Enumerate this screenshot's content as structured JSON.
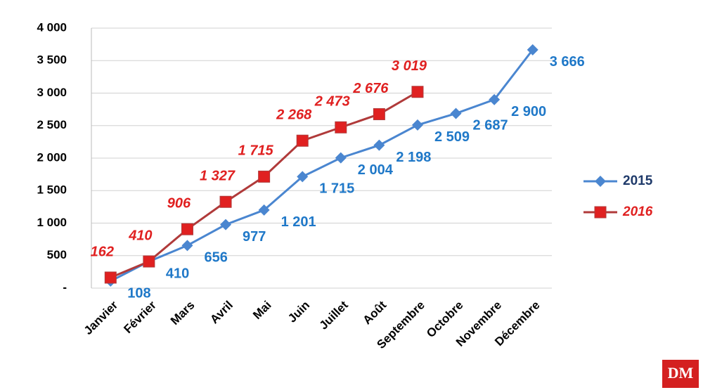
{
  "chart_data": {
    "type": "line",
    "categories": [
      "Janvier",
      "Février",
      "Mars",
      "Avril",
      "Mai",
      "Juin",
      "Juillet",
      "Août",
      "Septembre",
      "Octobre",
      "Novembre",
      "Décembre"
    ],
    "series": [
      {
        "name": "2015",
        "color": "#4a86d0",
        "marker": "diamond",
        "values": [
          108,
          410,
          656,
          977,
          1201,
          1715,
          2004,
          2198,
          2509,
          2687,
          2900,
          3666
        ],
        "value_labels": [
          "108",
          "410",
          "656",
          "977",
          "1 201",
          "1 715",
          "2 004",
          "2 198",
          "2 509",
          "2 687",
          "2 900",
          "3 666"
        ]
      },
      {
        "name": "2016",
        "color": "#b03a3a",
        "label_color": "#e02020",
        "marker": "square",
        "values": [
          162,
          410,
          906,
          1327,
          1715,
          2268,
          2473,
          2676,
          3019,
          null,
          null,
          null
        ],
        "value_labels": [
          "162",
          "410",
          "906",
          "1 327",
          "1 715",
          "2 268",
          "2 473",
          "2 676",
          "3 019",
          null,
          null,
          null
        ]
      }
    ],
    "ylim": [
      0,
      4000
    ],
    "yticks": [
      {
        "value": 0,
        "label": "-"
      },
      500,
      {
        "value": 1000,
        "label": "1 000"
      },
      {
        "value": 1500,
        "label": "1 500"
      },
      {
        "value": 2000,
        "label": "2 000"
      },
      {
        "value": 2500,
        "label": "2 500"
      },
      {
        "value": 3000,
        "label": "3 000"
      },
      {
        "value": 3500,
        "label": "3 500"
      },
      {
        "value": 4000,
        "label": "4 000"
      }
    ],
    "grid": true,
    "legend": "right",
    "logo": "DM"
  }
}
